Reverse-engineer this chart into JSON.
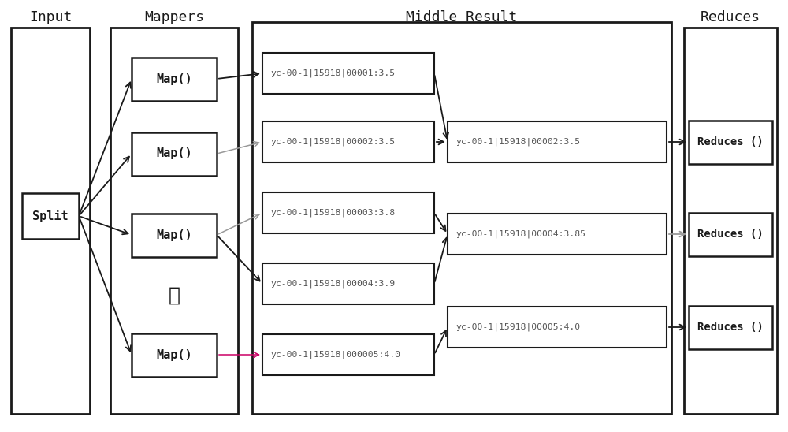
{
  "title_input": "Input",
  "title_mappers": "Mappers",
  "title_middle": "Middle Result",
  "title_reduces": "Reduces",
  "split_label": "Split",
  "map_labels": [
    "Map()",
    "Map()",
    "Map()",
    "Map()"
  ],
  "dots_label": "⋮",
  "left_middle_labels": [
    "yc-00-1|15918|00001:3.5",
    "yc-00-1|15918|00002:3.5",
    "yc-00-1|15918|00003:3.8",
    "yc-00-1|15918|00004:3.9",
    "yc-00-1|15918|000005:4.0"
  ],
  "right_middle_labels": [
    "yc-00-1|15918|00002:3.5",
    "yc-00-1|15918|00004:3.85",
    "yc-00-1|15918|00005:4.0"
  ],
  "reduce_labels": [
    "Reduces ()",
    "Reduces ()",
    "Reduces ()"
  ],
  "bg_color": "#ffffff",
  "border_color": "#1a1a1a",
  "text_color": "#1a1a1a",
  "arrow_color": "#1a1a1a",
  "gray_arrow_color": "#999999",
  "pink_arrow_color": "#cc0066"
}
